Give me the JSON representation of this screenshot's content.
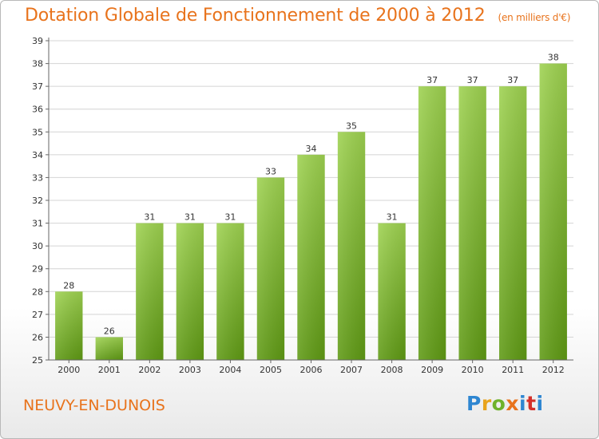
{
  "title": "Dotation Globale de Fonctionnement de 2000 à 2012",
  "unit": "(en milliers d'€)",
  "commune": "NEUVY-EN-DUNOIS",
  "logo": "Proxiti",
  "colors": {
    "title": "#e8731c",
    "bar_light": "#9ed250",
    "bar_dark": "#5f9a14",
    "grid": "#d4d4d4"
  },
  "chart_data": {
    "type": "bar",
    "categories": [
      "2000",
      "2001",
      "2002",
      "2003",
      "2004",
      "2005",
      "2006",
      "2007",
      "2008",
      "2009",
      "2010",
      "2011",
      "2012"
    ],
    "values": [
      28,
      26,
      31,
      31,
      31,
      33,
      34,
      35,
      31,
      37,
      37,
      37,
      38
    ],
    "title": "Dotation Globale de Fonctionnement de 2000 à 2012",
    "ylim": [
      25,
      39
    ],
    "yticks": [
      25,
      26,
      27,
      28,
      29,
      30,
      31,
      32,
      33,
      34,
      35,
      36,
      37,
      38,
      39
    ],
    "grid": true,
    "data_labels": true
  }
}
